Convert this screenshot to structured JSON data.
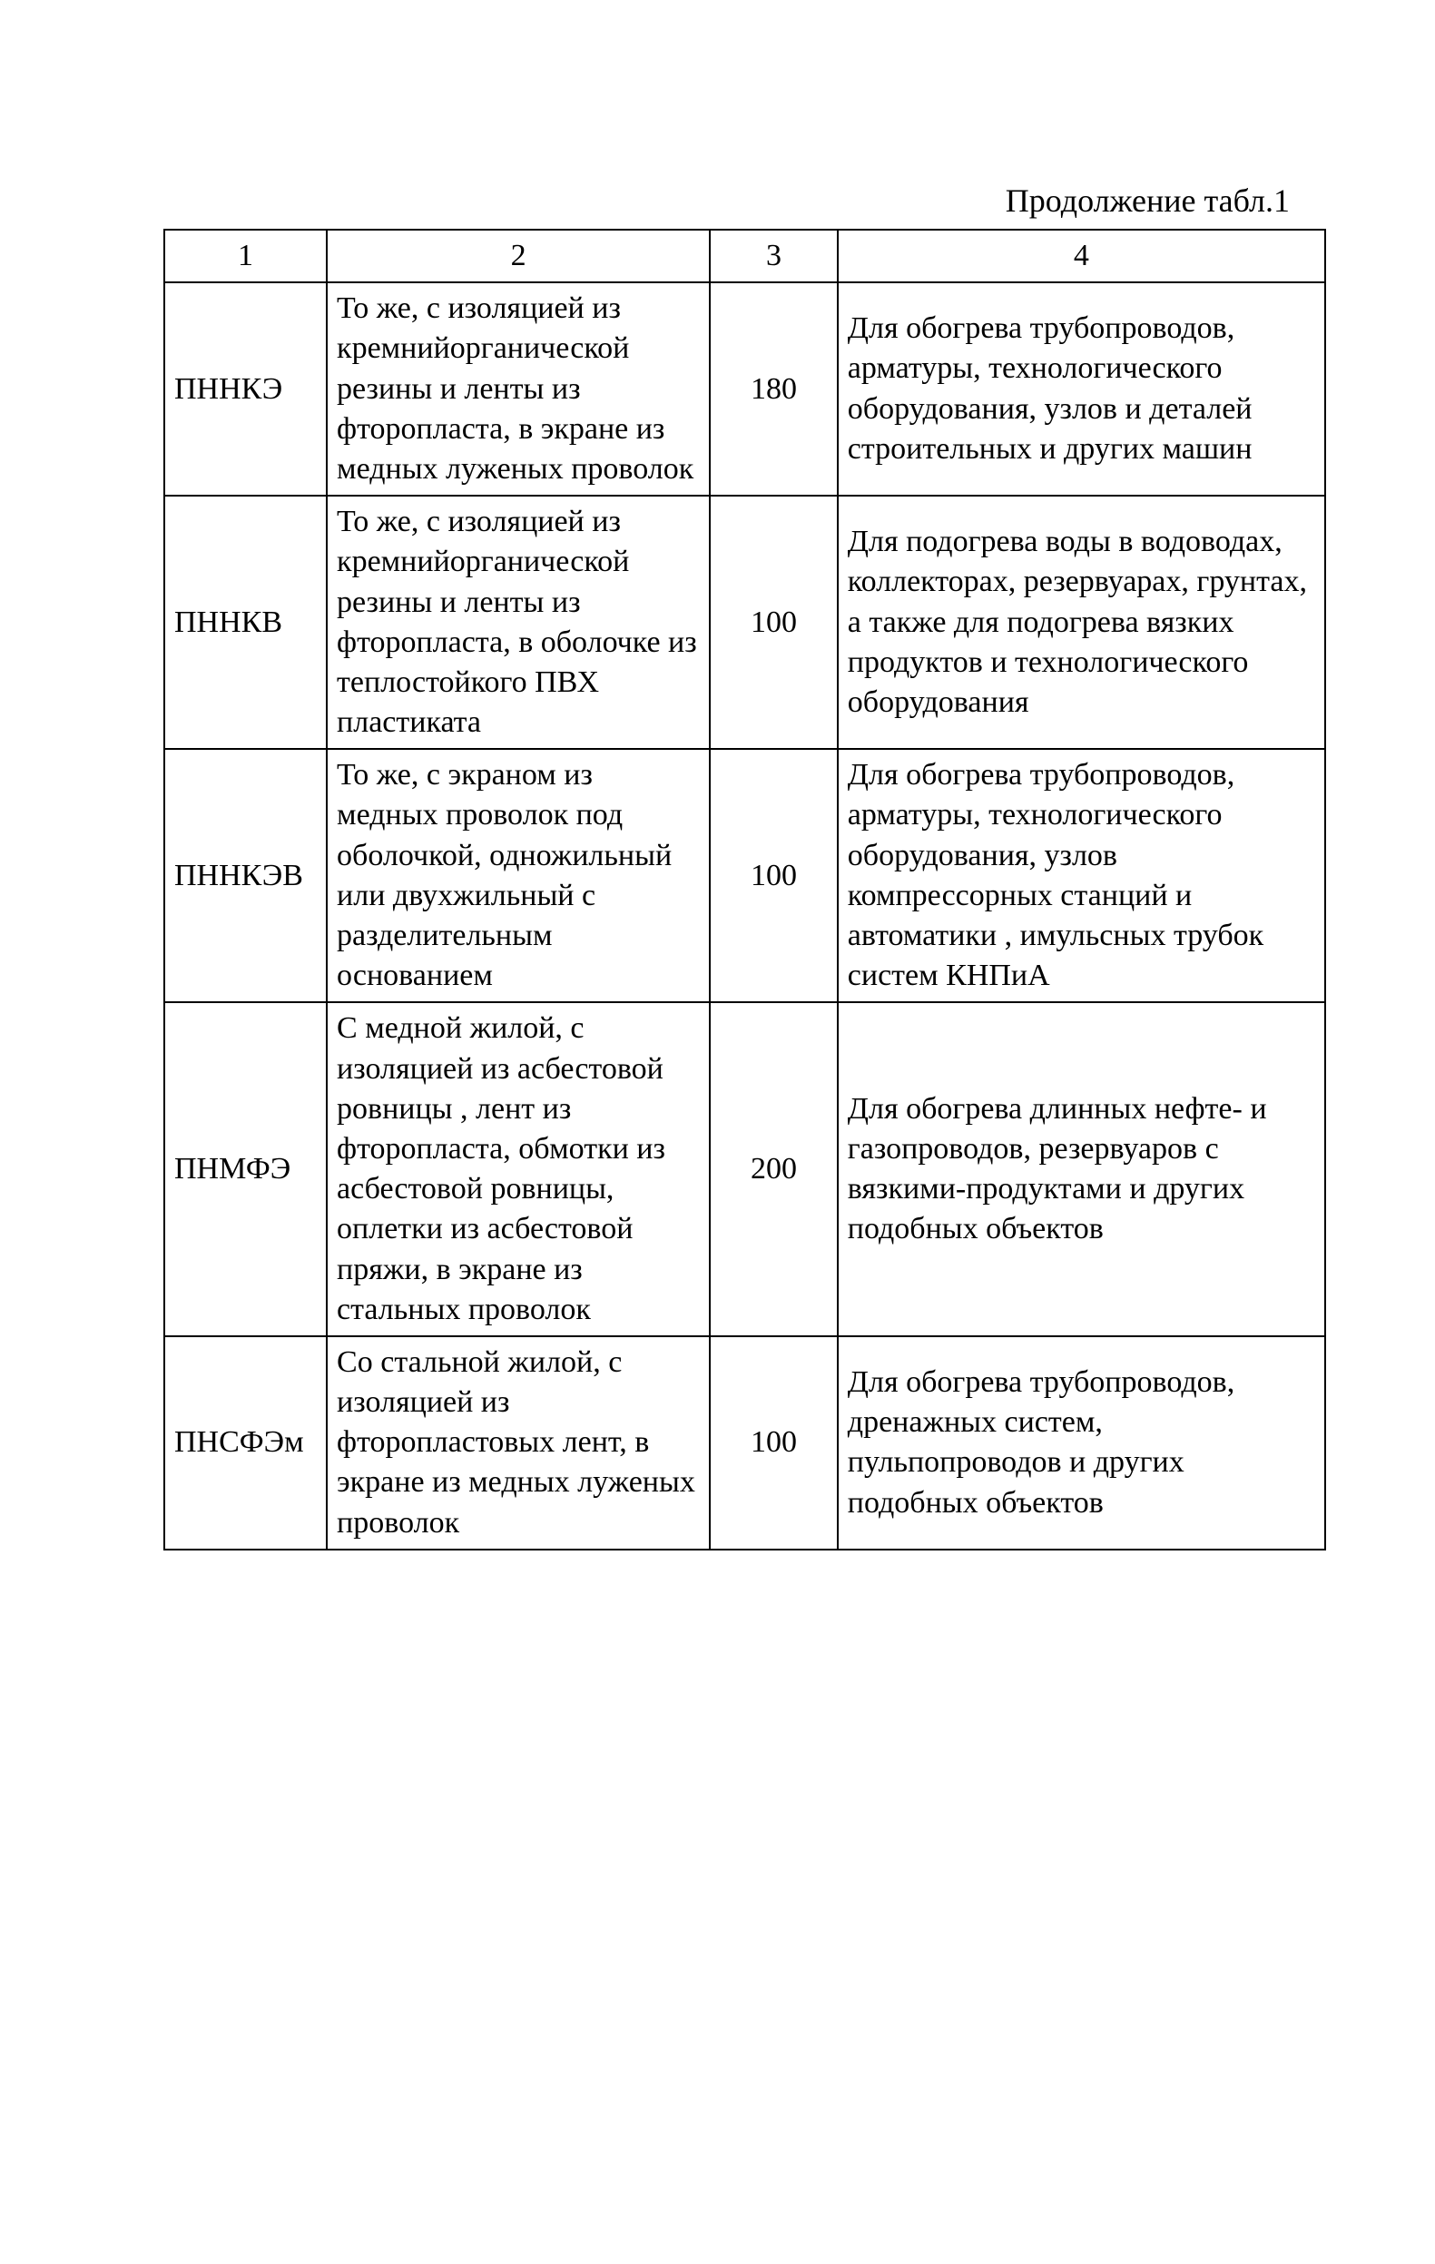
{
  "caption": "Продолжение табл.1",
  "columns": {
    "c1": "1",
    "c2": "2",
    "c3": "3",
    "c4": "4"
  },
  "rows": [
    {
      "c1": "ПННКЭ",
      "c2": "То же, с изоляцией из кремнийорганической резины и ленты из фторопласта, в экране из медных луженых проволок",
      "c3": "180",
      "c4": "Для обогрева трубопроводов, арматуры, технологического оборудования, узлов и деталей строительных и других машин"
    },
    {
      "c1": "ПННКВ",
      "c2": "То же, с изоляцией из кремнийорганической резины и ленты из фторопласта, в оболочке из теплостойкого ПВХ пластиката",
      "c3": "100",
      "c4": "Для подогрева воды в водоводах, коллекторах, резервуарах, грунтах, а также для подогрева вязких продуктов и технологического оборудования"
    },
    {
      "c1": "ПННКЭВ",
      "c2": "То же, с экраном из медных проволок под оболочкой, одножильный или двухжильный с разделительным основанием",
      "c3": "100",
      "c4": "Для обогрева трубопроводов, арматуры, технологического оборудования, узлов компрессорных станций и автоматики , имульсных трубок систем КНПиА"
    },
    {
      "c1": "ПНМФЭ",
      "c2": "С медной жилой, с изоляцией из асбестовой ровницы , лент из фторопласта, обмотки из асбестовой ровницы, оплетки из асбестовой пряжи, в экране из стальных проволок",
      "c3": "200",
      "c4": "Для обогрева длинных нефте- и газопроводов, резервуаров с вязкими-продуктами и других подобных объектов"
    },
    {
      "c1": "ПНСФЭм",
      "c2": "Со стальной жилой, с изоляцией из фторопластовых лент, в экране из медных луженых проволок",
      "c3": "100",
      "c4": "Для обогрева трубопроводов, дренажных систем, пульпопроводов и других подобных объектов"
    }
  ]
}
